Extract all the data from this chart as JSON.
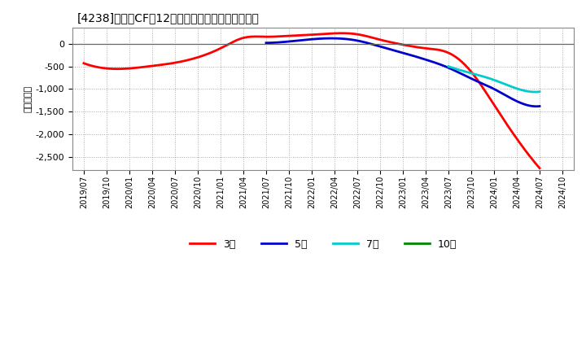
{
  "title": "[4238]　投賄CFの12か月移動合計の平均値の推移",
  "ylabel": "（百万円）",
  "background_color": "#ffffff",
  "plot_bg_color": "#ffffff",
  "grid_color": "#aaaaaa",
  "ylim": [
    -2800,
    350
  ],
  "yticks": [
    0,
    -500,
    -1000,
    -1500,
    -2000,
    -2500
  ],
  "series": {
    "3year": {
      "label": "3年",
      "color": "#ff0000",
      "points": [
        [
          "2019/07",
          -430
        ],
        [
          "2019/10",
          -545
        ],
        [
          "2020/01",
          -545
        ],
        [
          "2020/04",
          -490
        ],
        [
          "2020/07",
          -420
        ],
        [
          "2020/10",
          -300
        ],
        [
          "2021/01",
          -100
        ],
        [
          "2021/04",
          130
        ],
        [
          "2021/07",
          155
        ],
        [
          "2021/10",
          175
        ],
        [
          "2022/01",
          200
        ],
        [
          "2022/04",
          230
        ],
        [
          "2022/07",
          210
        ],
        [
          "2022/10",
          90
        ],
        [
          "2023/01",
          -20
        ],
        [
          "2023/04",
          -100
        ],
        [
          "2023/07",
          -200
        ],
        [
          "2023/10",
          -620
        ],
        [
          "2024/01",
          -1350
        ],
        [
          "2024/04",
          -2100
        ],
        [
          "2024/07",
          -2750
        ]
      ]
    },
    "5year": {
      "label": "5年",
      "color": "#0000cc",
      "points": [
        [
          "2021/07",
          20
        ],
        [
          "2021/10",
          50
        ],
        [
          "2022/01",
          100
        ],
        [
          "2022/04",
          120
        ],
        [
          "2022/07",
          70
        ],
        [
          "2022/10",
          -60
        ],
        [
          "2023/01",
          -200
        ],
        [
          "2023/04",
          -350
        ],
        [
          "2023/07",
          -530
        ],
        [
          "2023/10",
          -770
        ],
        [
          "2024/01",
          -1000
        ],
        [
          "2024/04",
          -1270
        ],
        [
          "2024/07",
          -1380
        ]
      ]
    },
    "7year": {
      "label": "7年",
      "color": "#00cccc",
      "points": [
        [
          "2023/07",
          -500
        ],
        [
          "2023/10",
          -650
        ],
        [
          "2024/01",
          -800
        ],
        [
          "2024/04",
          -990
        ],
        [
          "2024/07",
          -1060
        ]
      ]
    },
    "10year": {
      "label": "10年",
      "color": "#008800",
      "points": []
    }
  },
  "x_tick_labels": [
    "2019/07",
    "2019/10",
    "2020/01",
    "2020/04",
    "2020/07",
    "2020/10",
    "2021/01",
    "2021/04",
    "2021/07",
    "2021/10",
    "2022/01",
    "2022/04",
    "2022/07",
    "2022/10",
    "2023/01",
    "2023/04",
    "2023/07",
    "2023/10",
    "2024/01",
    "2024/04",
    "2024/07",
    "2024/10"
  ]
}
